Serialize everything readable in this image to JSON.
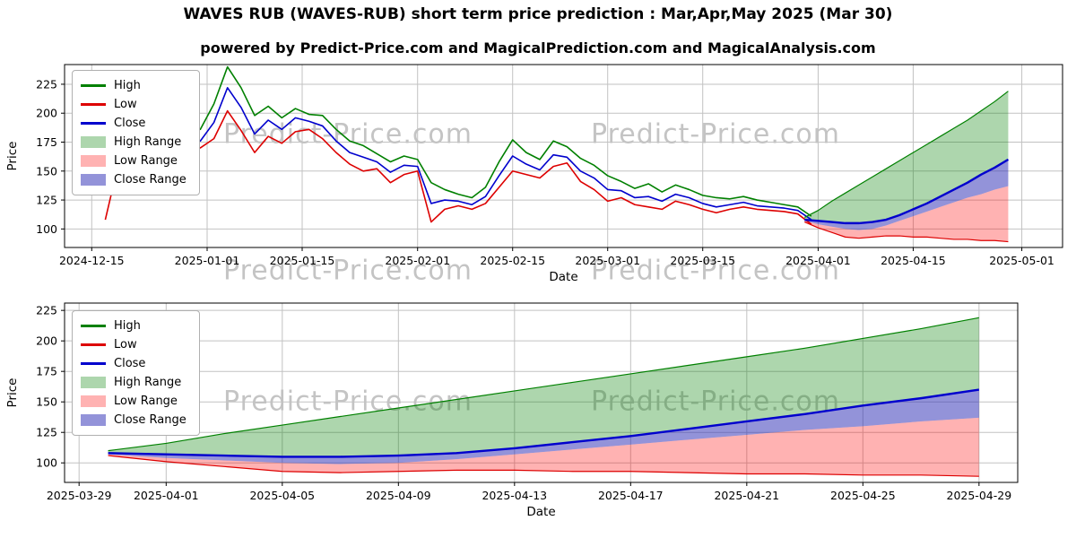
{
  "title": "WAVES RUB (WAVES-RUB) short term price prediction : Mar,Apr,May 2025 (Mar 30)",
  "subtitle": "powered by Predict-Price.com and MagicalPrediction.com and MagicalAnalysis.com",
  "watermark": "Predict-Price.com",
  "colors": {
    "high": "#008000",
    "low": "#dd0000",
    "close": "#0000cd",
    "grid": "#c2c2c2",
    "high_fill": "rgba(0,128,0,0.32)",
    "low_fill": "rgba(255,0,0,0.30)",
    "close_fill": "rgba(40,40,180,0.50)",
    "watermark": "#c4c4c4"
  },
  "legend": [
    {
      "label": "High",
      "type": "line",
      "color": "#008000",
      "icon": "high-line-swatch"
    },
    {
      "label": "Low",
      "type": "line",
      "color": "#dd0000",
      "icon": "low-line-swatch"
    },
    {
      "label": "Close",
      "type": "line",
      "color": "#0000cd",
      "icon": "close-line-swatch"
    },
    {
      "label": "High Range",
      "type": "patch",
      "color": "rgba(0,128,0,0.32)",
      "icon": "high-range-swatch"
    },
    {
      "label": "Low Range",
      "type": "patch",
      "color": "rgba(255,0,0,0.30)",
      "icon": "low-range-swatch"
    },
    {
      "label": "Close Range",
      "type": "patch",
      "color": "rgba(40,40,180,0.50)",
      "icon": "close-range-swatch"
    }
  ],
  "history": {
    "dates": [
      "2024-12-17",
      "2024-12-19",
      "2024-12-21",
      "2024-12-23",
      "2024-12-25",
      "2024-12-27",
      "2024-12-29",
      "2024-12-31",
      "2025-01-02",
      "2025-01-04",
      "2025-01-06",
      "2025-01-08",
      "2025-01-10",
      "2025-01-12",
      "2025-01-14",
      "2025-01-16",
      "2025-01-18",
      "2025-01-20",
      "2025-01-22",
      "2025-01-24",
      "2025-01-26",
      "2025-01-28",
      "2025-01-30",
      "2025-02-01",
      "2025-02-03",
      "2025-02-05",
      "2025-02-07",
      "2025-02-09",
      "2025-02-11",
      "2025-02-13",
      "2025-02-15",
      "2025-02-17",
      "2025-02-19",
      "2025-02-21",
      "2025-02-23",
      "2025-02-25",
      "2025-02-27",
      "2025-03-01",
      "2025-03-03",
      "2025-03-05",
      "2025-03-07",
      "2025-03-09",
      "2025-03-11",
      "2025-03-13",
      "2025-03-15",
      "2025-03-17",
      "2025-03-19",
      "2025-03-21",
      "2025-03-23",
      "2025-03-25",
      "2025-03-27",
      "2025-03-29",
      "2025-03-31"
    ],
    "high": [
      172,
      176,
      174,
      180,
      184,
      179,
      192,
      186,
      208,
      240,
      222,
      198,
      206,
      196,
      204,
      199,
      198,
      186,
      176,
      172,
      165,
      158,
      163,
      160,
      140,
      134,
      130,
      127,
      136,
      158,
      177,
      166,
      160,
      176,
      171,
      161,
      155,
      146,
      141,
      135,
      139,
      132,
      138,
      134,
      129,
      127,
      126,
      128,
      125,
      123,
      121,
      119,
      111
    ],
    "low": [
      108,
      158,
      160,
      163,
      168,
      165,
      172,
      170,
      178,
      202,
      185,
      166,
      180,
      174,
      184,
      186,
      178,
      166,
      156,
      150,
      152,
      140,
      147,
      150,
      106,
      117,
      120,
      117,
      122,
      136,
      150,
      147,
      144,
      154,
      157,
      141,
      134,
      124,
      127,
      121,
      119,
      117,
      124,
      121,
      117,
      114,
      117,
      119,
      117,
      116,
      115,
      113,
      104
    ],
    "close": [
      163,
      168,
      165,
      172,
      175,
      170,
      183,
      176,
      192,
      222,
      205,
      182,
      194,
      186,
      196,
      193,
      189,
      176,
      166,
      162,
      158,
      149,
      155,
      154,
      122,
      125,
      124,
      121,
      128,
      146,
      163,
      156,
      151,
      164,
      162,
      150,
      144,
      134,
      133,
      127,
      128,
      124,
      130,
      127,
      122,
      119,
      121,
      123,
      120,
      119,
      118,
      116,
      108
    ]
  },
  "forecast": {
    "dates": [
      "2025-03-30",
      "2025-04-01",
      "2025-04-03",
      "2025-04-05",
      "2025-04-07",
      "2025-04-09",
      "2025-04-11",
      "2025-04-13",
      "2025-04-15",
      "2025-04-17",
      "2025-04-19",
      "2025-04-21",
      "2025-04-23",
      "2025-04-25",
      "2025-04-27",
      "2025-04-29"
    ],
    "close": [
      108,
      107,
      106,
      105,
      105,
      106,
      108,
      112,
      117,
      122,
      128,
      134,
      140,
      147,
      153,
      160
    ],
    "close_lower": [
      107,
      104,
      102,
      100,
      99,
      100,
      103,
      107,
      111,
      115,
      119,
      123,
      127,
      130,
      134,
      137
    ],
    "low_lower": [
      106,
      101,
      97,
      93,
      92,
      93,
      94,
      94,
      93,
      93,
      92,
      91,
      91,
      90,
      90,
      89
    ],
    "high_upper": [
      110,
      116,
      124,
      131,
      138,
      145,
      152,
      159,
      166,
      173,
      180,
      187,
      194,
      202,
      210,
      219
    ]
  },
  "chart_data": [
    {
      "type": "line",
      "title": "",
      "xlabel": "Date",
      "ylabel": "Price",
      "show_history": true,
      "ylim": [
        84,
        242
      ],
      "yticks": [
        100,
        125,
        150,
        175,
        200,
        225
      ],
      "xlim": [
        "2024-12-11",
        "2025-05-07"
      ],
      "xticks": [
        "2024-12-15",
        "2025-01-01",
        "2025-01-15",
        "2025-02-01",
        "2025-02-15",
        "2025-03-01",
        "2025-03-15",
        "2025-04-01",
        "2025-04-15",
        "2025-05-01"
      ],
      "grid": true,
      "legend_position": "upper-left"
    },
    {
      "type": "line",
      "title": "",
      "xlabel": "Date",
      "ylabel": "Price",
      "show_history": false,
      "ylim": [
        84,
        231
      ],
      "yticks": [
        100,
        125,
        150,
        175,
        200,
        225
      ],
      "xlim": [
        "2025-03-28T12:00:00",
        "2025-04-30T08:00:00"
      ],
      "xticks": [
        "2025-03-29",
        "2025-04-01",
        "2025-04-05",
        "2025-04-09",
        "2025-04-13",
        "2025-04-17",
        "2025-04-21",
        "2025-04-25",
        "2025-04-29"
      ],
      "grid": true,
      "legend_position": "upper-left"
    }
  ]
}
